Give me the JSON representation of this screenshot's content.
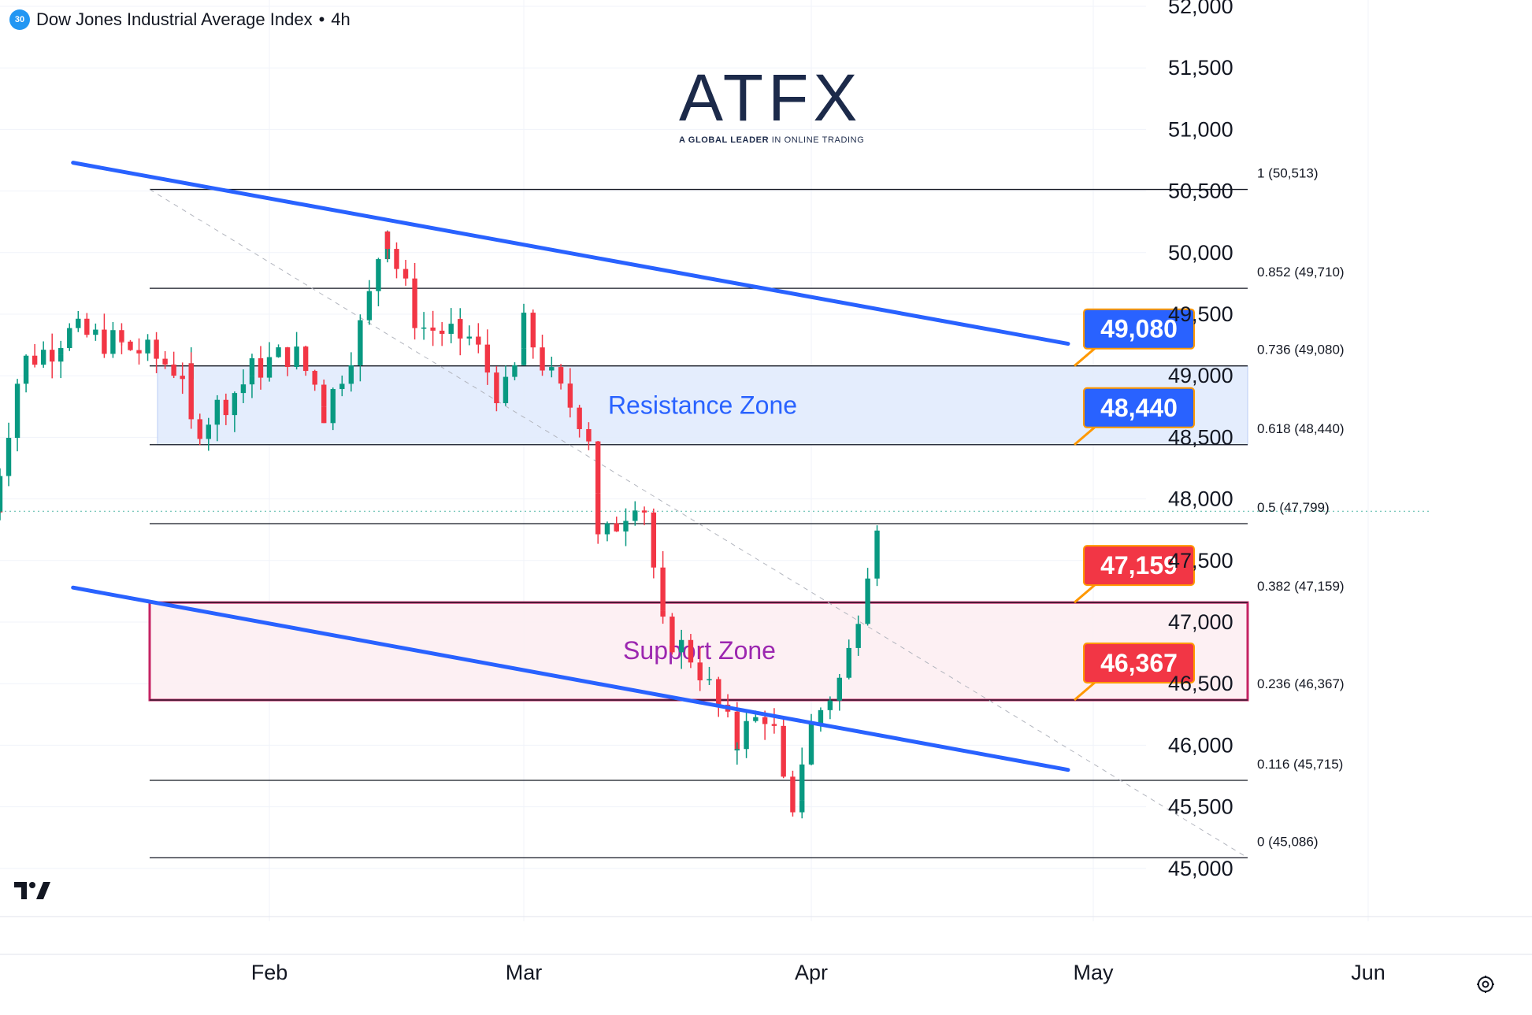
{
  "header": {
    "symbol_badge": "30",
    "title": "Dow Jones Industrial Average Index",
    "separator": "•",
    "interval": "4h"
  },
  "logo": {
    "brand": "ATFX",
    "tagline_bold": "A GLOBAL LEADER",
    "tagline_rest": " IN ONLINE TRADING"
  },
  "icons": [
    "tradingview-logo-icon",
    "settings-gear-icon"
  ],
  "colors": {
    "up": "#089981",
    "down": "#f23645",
    "trendline": "#2962ff",
    "resistance_fill": "#e3edfd",
    "support_fill": "#fdf0f3",
    "support_border": "#c2185b",
    "blue_label": "#2962ff",
    "red_label": "#f23645",
    "callout_line": "#ff9800"
  },
  "chart_data": {
    "type": "candlestick",
    "title": "Dow Jones Industrial Average Index • 4h",
    "ylim": [
      44950,
      52050
    ],
    "y_ticks": [
      "52,000",
      "51,500",
      "51,000",
      "50,500",
      "50,000",
      "49,500",
      "49,000",
      "48,500",
      "48,000",
      "47,500",
      "47,000",
      "46,500",
      "46,000",
      "45,500",
      "45,000"
    ],
    "x_labels": [
      {
        "label": "Feb",
        "date": "2026-02-01"
      },
      {
        "label": "Mar",
        "date": "2026-03-01"
      },
      {
        "label": "Apr",
        "date": "2026-04-01"
      },
      {
        "label": "May",
        "date": "2026-05-01"
      },
      {
        "label": "Jun",
        "date": "2026-06-01"
      }
    ],
    "candles": [
      {
        "date": "2026-01-01",
        "o": 47950,
        "h": 48150,
        "l": 47850,
        "c": 47900
      },
      {
        "date": "2026-01-02",
        "o": 47900,
        "h": 48300,
        "l": 47850,
        "c": 48250
      },
      {
        "date": "2026-01-03",
        "o": 48250,
        "h": 49200,
        "l": 48200,
        "c": 49100
      },
      {
        "date": "2026-01-05",
        "o": 49100,
        "h": 49200,
        "l": 48900,
        "c": 48950
      },
      {
        "date": "2026-01-06",
        "o": 48950,
        "h": 49400,
        "l": 48900,
        "c": 49350
      },
      {
        "date": "2026-01-07",
        "o": 49350,
        "h": 49500,
        "l": 49200,
        "c": 49250
      },
      {
        "date": "2026-01-08",
        "o": 49250,
        "h": 49600,
        "l": 49200,
        "c": 49550
      },
      {
        "date": "2026-01-09",
        "o": 49550,
        "h": 49600,
        "l": 49100,
        "c": 49250
      },
      {
        "date": "2026-01-10",
        "o": 49250,
        "h": 49300,
        "l": 48900,
        "c": 48950
      },
      {
        "date": "2026-01-12",
        "o": 48950,
        "h": 49000,
        "l": 48800,
        "c": 48900
      },
      {
        "date": "2026-01-13",
        "o": 48900,
        "h": 49300,
        "l": 48850,
        "c": 49250
      },
      {
        "date": "2026-01-14",
        "o": 49250,
        "h": 49400,
        "l": 49200,
        "c": 49350
      },
      {
        "date": "2026-01-15",
        "o": 49350,
        "h": 49550,
        "l": 49300,
        "c": 49500
      },
      {
        "date": "2026-01-16",
        "o": 49500,
        "h": 49600,
        "l": 49400,
        "c": 49450
      },
      {
        "date": "2026-01-17",
        "o": 49450,
        "h": 49600,
        "l": 49400,
        "c": 49550
      },
      {
        "date": "2026-01-19",
        "o": 49550,
        "h": 49650,
        "l": 49450,
        "c": 49500
      },
      {
        "date": "2026-01-20",
        "o": 49500,
        "h": 49550,
        "l": 48950,
        "c": 49000
      },
      {
        "date": "2026-01-21",
        "o": 49000,
        "h": 49300,
        "l": 48950,
        "c": 49250
      },
      {
        "date": "2026-01-22",
        "o": 49250,
        "h": 49300,
        "l": 49050,
        "c": 49200
      },
      {
        "date": "2026-01-23",
        "o": 49200,
        "h": 49250,
        "l": 48900,
        "c": 49000
      },
      {
        "date": "2026-01-24",
        "o": 49000,
        "h": 49150,
        "l": 48850,
        "c": 49100
      },
      {
        "date": "2026-01-26",
        "o": 49100,
        "h": 49150,
        "l": 48950,
        "c": 49000
      },
      {
        "date": "2026-01-27",
        "o": 49000,
        "h": 49600,
        "l": 48950,
        "c": 49550
      },
      {
        "date": "2026-01-28",
        "o": 49550,
        "h": 49600,
        "l": 49200,
        "c": 49250
      },
      {
        "date": "2026-01-29",
        "o": 49250,
        "h": 49300,
        "l": 49150,
        "c": 49200
      },
      {
        "date": "2026-01-30",
        "o": 49200,
        "h": 49350,
        "l": 49100,
        "c": 49300
      },
      {
        "date": "2026-01-31",
        "o": 49300,
        "h": 49350,
        "l": 48950,
        "c": 49000
      },
      {
        "date": "2026-02-01",
        "o": 48500,
        "h": 48600,
        "l": 48400,
        "c": 48450
      },
      {
        "date": "2026-02-02",
        "o": 48450,
        "h": 48550,
        "l": 48250,
        "c": 48300
      },
      {
        "date": "2026-02-03",
        "o": 48300,
        "h": 48750,
        "l": 48250,
        "c": 48700
      },
      {
        "date": "2026-02-04",
        "o": 48700,
        "h": 49050,
        "l": 48650,
        "c": 49000
      },
      {
        "date": "2026-02-05",
        "o": 49000,
        "h": 49500,
        "l": 48950,
        "c": 49450
      },
      {
        "date": "2026-02-06",
        "o": 49450,
        "h": 49500,
        "l": 49250,
        "c": 49300
      },
      {
        "date": "2026-02-07",
        "o": 49300,
        "h": 49400,
        "l": 49150,
        "c": 49250
      },
      {
        "date": "2026-02-08",
        "o": 49250,
        "h": 49300,
        "l": 48950,
        "c": 49050
      },
      {
        "date": "2026-02-09",
        "o": 49050,
        "h": 49400,
        "l": 48950,
        "c": 49400
      },
      {
        "date": "2026-02-10",
        "o": 49400,
        "h": 49450,
        "l": 49050,
        "c": 49100
      },
      {
        "date": "2026-02-11",
        "o": 49100,
        "h": 49200,
        "l": 48800,
        "c": 49000
      },
      {
        "date": "2026-02-12",
        "o": 49000,
        "h": 49150,
        "l": 48900,
        "c": 49050
      },
      {
        "date": "2026-02-13",
        "o": 49050,
        "h": 49100,
        "l": 48950,
        "c": 49000
      },
      {
        "date": "2026-02-14",
        "o": 49000,
        "h": 49050,
        "l": 48650,
        "c": 48700
      },
      {
        "date": "2026-02-15",
        "o": 48700,
        "h": 48750,
        "l": 48500,
        "c": 48650
      },
      {
        "date": "2026-02-16",
        "o": 48650,
        "h": 49050,
        "l": 48600,
        "c": 49000
      },
      {
        "date": "2026-02-17",
        "o": 49000,
        "h": 49100,
        "l": 48650,
        "c": 48750
      },
      {
        "date": "2026-02-18",
        "o": 48750,
        "h": 48950,
        "l": 48550,
        "c": 48850
      },
      {
        "date": "2026-02-19",
        "o": 48850,
        "h": 48950,
        "l": 48400,
        "c": 48450
      },
      {
        "date": "2026-02-20",
        "o": 48450,
        "h": 48900,
        "l": 48400,
        "c": 48850
      },
      {
        "date": "2026-02-21",
        "o": 48850,
        "h": 49400,
        "l": 48800,
        "c": 49350
      },
      {
        "date": "2026-02-22",
        "o": 49350,
        "h": 49500,
        "l": 49100,
        "c": 49150
      },
      {
        "date": "2026-02-23",
        "o": 49150,
        "h": 49350,
        "l": 48950,
        "c": 49250
      },
      {
        "date": "2026-02-24",
        "o": 49250,
        "h": 49300,
        "l": 48850,
        "c": 48900
      },
      {
        "date": "2026-02-25",
        "o": 48900,
        "h": 49100,
        "l": 48850,
        "c": 49050
      },
      {
        "date": "2026-02-26",
        "o": 49050,
        "h": 49550,
        "l": 49000,
        "c": 49500
      },
      {
        "date": "2026-02-27",
        "o": 49500,
        "h": 49600,
        "l": 49250,
        "c": 49300
      },
      {
        "date": "2026-02-28",
        "o": 49300,
        "h": 49550,
        "l": 49200,
        "c": 49450
      },
      {
        "date": "2026-02-29",
        "o": 49450,
        "h": 49500,
        "l": 49100,
        "c": 49150
      },
      {
        "date": "2026-02-30",
        "o": 49150,
        "h": 49350,
        "l": 49050,
        "c": 49300
      },
      {
        "date": "2026-03-01",
        "o": 49300,
        "h": 49800,
        "l": 49250,
        "c": 49450
      },
      {
        "date": "2026-03-02",
        "o": 49450,
        "h": 49500,
        "l": 49100,
        "c": 49150
      },
      {
        "date": "2026-03-03",
        "o": 49150,
        "h": 49400,
        "l": 49100,
        "c": 49350
      },
      {
        "date": "2026-03-04",
        "o": 49350,
        "h": 49500,
        "l": 49300,
        "c": 49450
      }
    ],
    "series": [
      {
        "name": "DJI 4h",
        "candles": [
          {
            "x": "2026-01-01",
            "o": 48000,
            "h": 48180,
            "l": 47850,
            "c": 48100
          },
          {
            "x": "2026-01-02",
            "o": 48150,
            "h": 49250,
            "l": 48100,
            "c": 49150
          },
          {
            "x": "2026-01-03",
            "o": 49150,
            "h": 49250,
            "l": 48950,
            "c": 49000
          },
          {
            "x": "2026-01-04",
            "o": 49000,
            "h": 49450,
            "l": 48950,
            "c": 49400
          },
          {
            "x": "2026-01-05",
            "o": 49400,
            "h": 49500,
            "l": 49250,
            "c": 49300
          },
          {
            "x": "2026-01-06",
            "o": 49300,
            "h": 49600,
            "l": 49250,
            "c": 49500
          },
          {
            "x": "2026-01-07",
            "o": 49500,
            "h": 49550,
            "l": 49150,
            "c": 49200
          },
          {
            "x": "2026-01-08",
            "o": 49200,
            "h": 49250,
            "l": 48950,
            "c": 49000
          },
          {
            "x": "2026-01-09",
            "o": 49000,
            "h": 49100,
            "l": 48800,
            "c": 48850
          },
          {
            "x": "2026-01-10",
            "o": 48850,
            "h": 49300,
            "l": 48800,
            "c": 49250
          },
          {
            "x": "2026-01-11",
            "o": 49250,
            "h": 49400,
            "l": 49200,
            "c": 49350
          },
          {
            "x": "2026-01-12",
            "o": 49350,
            "h": 49500,
            "l": 49300,
            "c": 49450
          },
          {
            "x": "2026-01-13",
            "o": 49450,
            "h": 49580,
            "l": 49400,
            "c": 49500
          },
          {
            "x": "2026-01-14",
            "o": 49500,
            "h": 49620,
            "l": 49400,
            "c": 49550
          },
          {
            "x": "2026-01-15",
            "o": 49550,
            "h": 49600,
            "l": 49450,
            "c": 49480
          },
          {
            "x": "2026-01-16",
            "o": 49480,
            "h": 49550,
            "l": 49050,
            "c": 49100
          },
          {
            "x": "2026-01-17",
            "o": 49100,
            "h": 49300,
            "l": 49050,
            "c": 49250
          },
          {
            "x": "2026-01-18",
            "o": 49250,
            "h": 49300,
            "l": 49150,
            "c": 49200
          },
          {
            "x": "2026-01-19",
            "o": 49200,
            "h": 49250,
            "l": 48850,
            "c": 48950
          },
          {
            "x": "2026-01-20",
            "o": 48950,
            "h": 49100,
            "l": 48850,
            "c": 49050
          },
          {
            "x": "2026-01-21",
            "o": 49050,
            "h": 49120,
            "l": 48950,
            "c": 49000
          },
          {
            "x": "2026-01-22",
            "o": 49000,
            "h": 49550,
            "l": 48950,
            "c": 49500
          },
          {
            "x": "2026-01-23",
            "o": 49500,
            "h": 49600,
            "l": 49250,
            "c": 49300
          },
          {
            "x": "2026-01-24",
            "o": 49300,
            "h": 49400,
            "l": 49150,
            "c": 49350
          },
          {
            "x": "2026-01-25",
            "o": 49350,
            "h": 49380,
            "l": 49000,
            "c": 49050
          }
        ]
      }
    ],
    "fib_levels": [
      {
        "ratio": "1",
        "value": 50513,
        "label": "1 (50,513)"
      },
      {
        "ratio": "0.852",
        "value": 49710,
        "label": "0.852 (49,710)"
      },
      {
        "ratio": "0.736",
        "value": 49080,
        "label": "0.736 (49,080)"
      },
      {
        "ratio": "0.618",
        "value": 48440,
        "label": "0.618 (48,440)"
      },
      {
        "ratio": "0.5",
        "value": 47799,
        "label": "0.5 (47,799)"
      },
      {
        "ratio": "0.382",
        "value": 47159,
        "label": "0.382 (47,159)"
      },
      {
        "ratio": "0.236",
        "value": 46367,
        "label": "0.236 (46,367)"
      },
      {
        "ratio": "0.116",
        "value": 45715,
        "label": "0.116 (45,715)"
      },
      {
        "ratio": "0",
        "value": 45086,
        "label": "0 (45,086)"
      }
    ],
    "zones": [
      {
        "name": "Resistance Zone",
        "from": 48440,
        "to": 49080
      },
      {
        "name": "Support Zone",
        "from": 46367,
        "to": 47159
      }
    ],
    "price_callouts": [
      {
        "label": "49,080",
        "value": 49080,
        "color": "blue"
      },
      {
        "label": "48,440",
        "value": 48440,
        "color": "blue"
      },
      {
        "label": "47,159",
        "value": 47159,
        "color": "red"
      },
      {
        "label": "46,367",
        "value": 46367,
        "color": "red"
      }
    ],
    "trendlines": [
      {
        "from": {
          "date": "2026-01-23",
          "value": 50730
        },
        "to": {
          "date": "2026-04-28",
          "value": 49260
        }
      },
      {
        "from": {
          "date": "2026-01-23",
          "value": 47280
        },
        "to": {
          "date": "2026-04-28",
          "value": 45800
        }
      }
    ],
    "current_price": 47900,
    "grid": true,
    "legend": "none"
  }
}
